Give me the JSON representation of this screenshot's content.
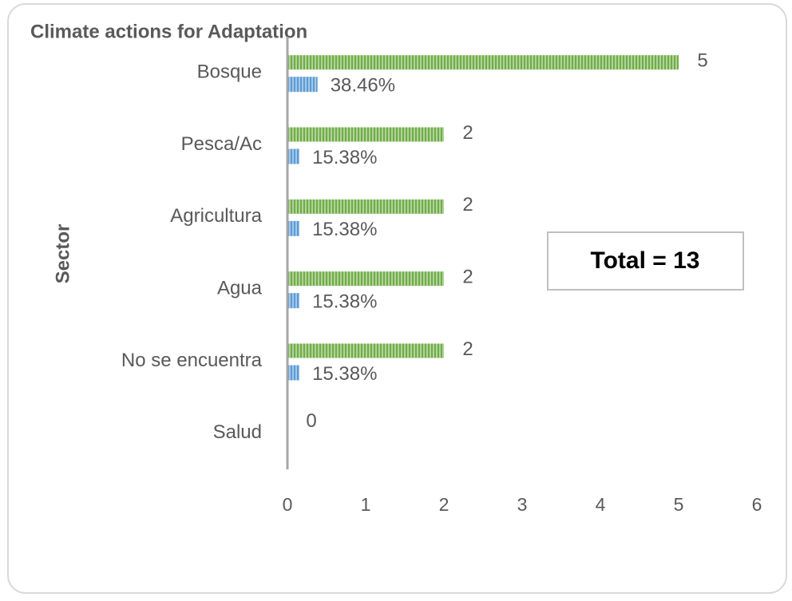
{
  "chart_data": {
    "type": "bar",
    "orientation": "horizontal",
    "title": "Climate actions for Adaptation",
    "y_label": "Sector",
    "annotation": "Total = 13",
    "categories": [
      "Bosque",
      "Pesca/Ac",
      "Agricultura",
      "Agua",
      "No se encuentra",
      "Salud"
    ],
    "series": [
      {
        "color": "#70ad47",
        "values": [
          5,
          2,
          2,
          2,
          2,
          0
        ]
      },
      {
        "color": "#5b9bd5",
        "values": [
          0.3846,
          0.1538,
          0.1538,
          0.1538,
          0.1538,
          null
        ],
        "value_labels": [
          "38.46%",
          "15.38%",
          "15.38%",
          "15.38%",
          "15.38%",
          null
        ]
      }
    ],
    "xlim": [
      0,
      6
    ],
    "xticks": [
      0,
      1,
      2,
      3,
      4,
      5,
      6
    ],
    "grid": false
  }
}
